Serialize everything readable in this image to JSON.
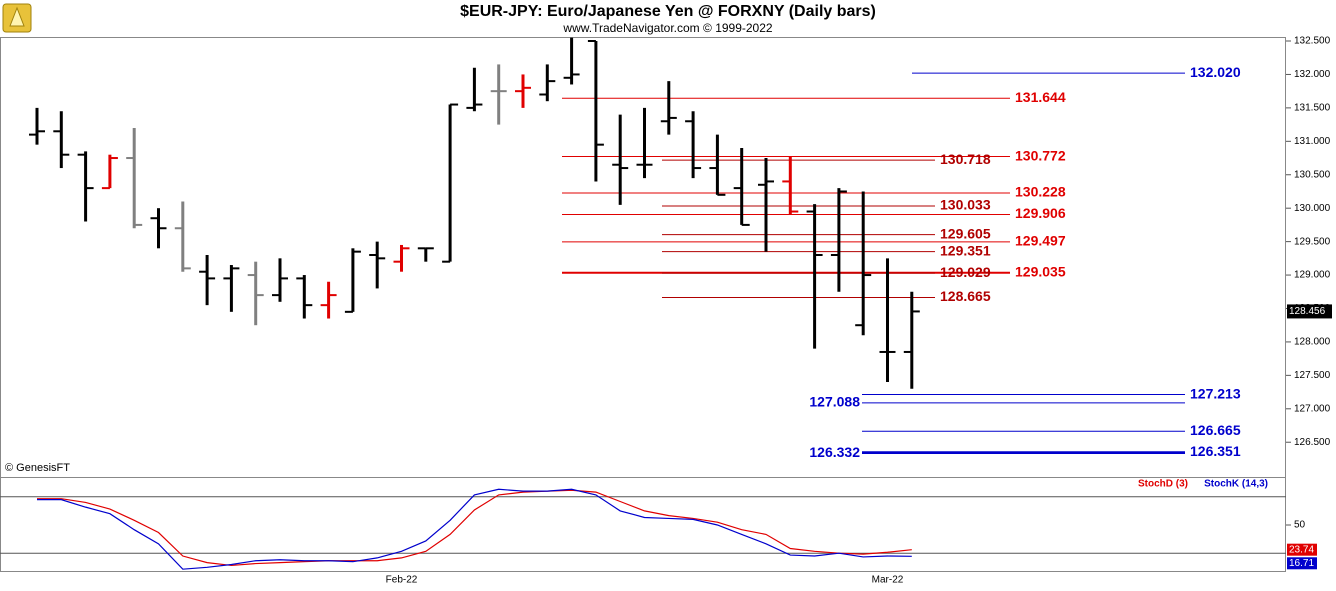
{
  "chart_data": [
    {
      "type": "ohlc",
      "title": "$EUR-JPY:  Euro/Japanese Yen @ FORXNY  (Daily bars)",
      "subtitle": "www.TradeNavigator.com © 1999-2022",
      "source": "© GenesisFT",
      "categories": [
        null,
        null,
        null,
        null,
        null,
        null,
        null,
        null,
        null,
        null,
        null,
        null,
        null,
        null,
        null,
        "Feb-22",
        null,
        null,
        null,
        null,
        null,
        null,
        null,
        null,
        null,
        null,
        null,
        null,
        null,
        null,
        null,
        null,
        null,
        null,
        null,
        "Mar-22",
        null
      ],
      "open": [
        131.1,
        131.15,
        130.8,
        130.3,
        130.75,
        129.85,
        129.7,
        129.05,
        128.95,
        129.0,
        128.7,
        128.95,
        128.55,
        128.45,
        129.3,
        129.2,
        129.4,
        129.2,
        131.5,
        131.75,
        131.75,
        131.7,
        131.95,
        132.5,
        130.65,
        130.65,
        131.3,
        131.3,
        130.6,
        130.3,
        130.35,
        130.4,
        129.95,
        129.3,
        128.25,
        127.85,
        127.85
      ],
      "high": [
        131.5,
        131.45,
        130.85,
        130.8,
        131.2,
        130.0,
        130.1,
        129.3,
        129.15,
        129.2,
        129.25,
        129.0,
        128.9,
        129.4,
        129.5,
        129.45,
        129.4,
        131.55,
        132.1,
        132.15,
        132.0,
        132.15,
        132.55,
        132.5,
        131.4,
        131.5,
        131.9,
        131.45,
        131.1,
        130.9,
        130.75,
        130.772,
        130.06,
        130.3,
        130.25,
        129.25,
        128.75
      ],
      "low": [
        130.95,
        130.6,
        129.8,
        130.3,
        129.7,
        129.4,
        129.05,
        128.55,
        128.45,
        128.25,
        128.6,
        128.35,
        128.35,
        128.45,
        128.8,
        129.05,
        129.2,
        129.2,
        131.45,
        131.25,
        131.5,
        131.6,
        131.85,
        130.4,
        130.05,
        130.45,
        131.1,
        130.45,
        130.2,
        129.75,
        129.35,
        129.9,
        127.9,
        128.75,
        128.1,
        127.4,
        127.3
      ],
      "close": [
        131.15,
        130.8,
        130.3,
        130.75,
        129.75,
        129.7,
        129.1,
        128.95,
        129.1,
        128.7,
        128.95,
        128.55,
        128.7,
        129.35,
        129.25,
        129.4,
        129.4,
        131.55,
        131.55,
        131.75,
        131.8,
        131.9,
        132.0,
        130.95,
        130.6,
        130.65,
        131.35,
        130.6,
        130.2,
        129.75,
        130.4,
        129.95,
        129.3,
        130.25,
        129.0,
        127.85,
        128.456
      ],
      "bar_colors": [
        "#000",
        "#000",
        "#000",
        "#e00000",
        "#808080",
        "#000",
        "#808080",
        "#000",
        "#000",
        "#808080",
        "#000",
        "#000",
        "#e00000",
        "#000",
        "#000",
        "#e00000",
        "#000",
        "#000",
        "#000",
        "#808080",
        "#e00000",
        "#000",
        "#000",
        "#000",
        "#000",
        "#000",
        "#000",
        "#000",
        "#000",
        "#000",
        "#000",
        "#e00000",
        "#000",
        "#000",
        "#000",
        "#000",
        "#000"
      ],
      "ylim": [
        125.98,
        132.56
      ],
      "yticks": [
        {
          "value": 126.5,
          "label": "126.500"
        },
        {
          "value": 127,
          "label": "127.000"
        },
        {
          "value": 127.5,
          "label": "127.500"
        },
        {
          "value": 128,
          "label": "128.000"
        },
        {
          "value": 128.5,
          "label": "128.500"
        },
        {
          "value": 129,
          "label": "129.000"
        },
        {
          "value": 129.5,
          "label": "129.500"
        },
        {
          "value": 130,
          "label": "130.000"
        },
        {
          "value": 130.5,
          "label": "130.500"
        },
        {
          "value": 131,
          "label": "131.000"
        },
        {
          "value": 131.5,
          "label": "131.500"
        },
        {
          "value": 132,
          "label": "132.000"
        },
        {
          "value": 132.5,
          "label": "132.500"
        }
      ],
      "levels": [
        {
          "value": 132.02,
          "label": "132.020",
          "color": "#0000cc"
        },
        {
          "value": 131.644,
          "label": "131.644",
          "color": "#e00000"
        },
        {
          "value": 130.772,
          "label": "130.772",
          "color": "#e00000"
        },
        {
          "value": 130.228,
          "label": "130.228",
          "color": "#e00000"
        },
        {
          "value": 129.906,
          "label": "129.906",
          "color": "#e00000"
        },
        {
          "value": 129.497,
          "label": "129.497",
          "color": "#e00000"
        },
        {
          "value": 129.035,
          "label": "129.035",
          "color": "#e00000"
        },
        {
          "value": 130.718,
          "label": "130.718",
          "color": "#b00000"
        },
        {
          "value": 130.033,
          "label": "130.033",
          "color": "#b00000"
        },
        {
          "value": 129.605,
          "label": "129.605",
          "color": "#b00000"
        },
        {
          "value": 129.351,
          "label": "129.351",
          "color": "#b00000"
        },
        {
          "value": 129.029,
          "label": "129.029",
          "color": "#b00000"
        },
        {
          "value": 128.665,
          "label": "128.665",
          "color": "#b00000"
        },
        {
          "value": 127.213,
          "label": "127.213",
          "color": "#0000cc"
        },
        {
          "value": 127.088,
          "label": "127.088",
          "color": "#0000cc"
        },
        {
          "value": 126.665,
          "label": "126.665",
          "color": "#0000cc"
        },
        {
          "value": 126.351,
          "label": "126.351",
          "color": "#0000cc"
        },
        {
          "value": 126.332,
          "label": "126.332",
          "color": "#0000cc"
        }
      ]
    },
    {
      "type": "line",
      "series": [
        {
          "name": "StochD (3)",
          "color": "#e00000",
          "values": [
            78,
            78,
            74,
            67,
            55,
            42,
            17,
            10,
            7,
            9,
            10,
            11,
            12,
            12,
            12,
            15,
            22,
            40,
            66,
            82,
            85,
            86,
            87,
            85,
            75,
            65,
            60,
            57,
            53,
            45,
            40,
            25,
            22,
            20,
            19,
            21,
            23.74
          ]
        },
        {
          "name": "StochK (14,3)",
          "color": "#0000cc",
          "values": [
            77,
            77,
            69,
            62,
            45,
            30,
            3,
            5,
            8,
            12,
            13,
            12,
            12,
            11,
            15,
            22,
            33,
            55,
            82,
            88,
            86,
            86,
            88,
            82,
            65,
            58,
            57,
            56,
            50,
            40,
            30,
            18,
            17,
            20,
            16,
            17,
            16.71
          ]
        }
      ],
      "ylim": [
        0,
        100
      ],
      "yticks": [
        50
      ],
      "reference_lines": [
        20,
        80
      ]
    }
  ]
}
